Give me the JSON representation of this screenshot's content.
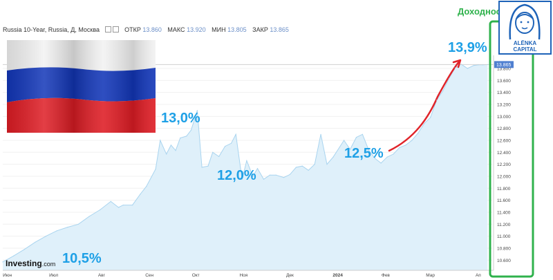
{
  "header": {
    "title": "Russia 10-Year, Russia, Д, Москва",
    "open_label": "ОТКР",
    "open_value": "13.860",
    "high_label": "МАКС",
    "high_value": "13.920",
    "low_label": "МИН",
    "low_value": "13.805",
    "close_label": "ЗАКР",
    "close_value": "13.865"
  },
  "brand": {
    "name": "Investing",
    "suffix": ".com"
  },
  "overlay": {
    "title_fragment": "Доходнос",
    "logo_line1": "ALЁNKA",
    "logo_line2": "CAPITAL",
    "annotations": [
      "10,5%",
      "13,0%",
      "12,0%",
      "12,5%",
      "13,9%"
    ]
  },
  "colors": {
    "area_fill": "#dff0fa",
    "area_line": "#a9d4ef",
    "annotation": "#1ea0e6",
    "arrow": "#e0242a",
    "highlight_box": "#2fb24c",
    "price_tag": "#4f7fd0",
    "logo": "#1e63b8"
  },
  "chart_data": {
    "type": "area",
    "x_ticks": [
      "Июн",
      "Июл",
      "Авг",
      "Сен",
      "Окт",
      "Ноя",
      "Дек",
      "2024",
      "Фев",
      "Мар",
      "Ап"
    ],
    "y_ticks": [
      "10.600",
      "10.800",
      "11.000",
      "11.200",
      "11.400",
      "11.600",
      "11.800",
      "12.000",
      "12.200",
      "12.400",
      "12.600",
      "12.800",
      "13.000",
      "13.200",
      "13.400",
      "13.600",
      "13.800"
    ],
    "ylim": [
      10.43,
      13.95
    ],
    "last_value": "13.865",
    "x": [
      "2023-05-29",
      "2023-06-05",
      "2023-06-12",
      "2023-06-19",
      "2023-06-26",
      "2023-07-03",
      "2023-07-10",
      "2023-07-17",
      "2023-07-24",
      "2023-07-31",
      "2023-08-07",
      "2023-08-12",
      "2023-08-15",
      "2023-08-21",
      "2023-08-26",
      "2023-08-30",
      "2023-09-05",
      "2023-09-08",
      "2023-09-12",
      "2023-09-15",
      "2023-09-18",
      "2023-09-21",
      "2023-09-25",
      "2023-09-28",
      "2023-10-02",
      "2023-10-05",
      "2023-10-09",
      "2023-10-12",
      "2023-10-16",
      "2023-10-20",
      "2023-10-24",
      "2023-10-27",
      "2023-10-31",
      "2023-11-03",
      "2023-11-07",
      "2023-11-10",
      "2023-11-14",
      "2023-11-18",
      "2023-11-22",
      "2023-11-27",
      "2023-12-01",
      "2023-12-05",
      "2023-12-09",
      "2023-12-13",
      "2023-12-17",
      "2023-12-21",
      "2023-12-25",
      "2023-12-29",
      "2024-01-05",
      "2024-01-09",
      "2024-01-13",
      "2024-01-17",
      "2024-01-21",
      "2024-01-25",
      "2024-01-29",
      "2024-02-02",
      "2024-02-06",
      "2024-02-10",
      "2024-02-14",
      "2024-02-18",
      "2024-02-22",
      "2024-02-26",
      "2024-03-01",
      "2024-03-05",
      "2024-03-09",
      "2024-03-13",
      "2024-03-17",
      "2024-03-21",
      "2024-03-25",
      "2024-03-29",
      "2024-04-01",
      "2024-04-04",
      "2024-04-07"
    ],
    "values": [
      10.57,
      10.67,
      10.78,
      10.9,
      11.0,
      11.09,
      11.15,
      11.2,
      11.33,
      11.44,
      11.58,
      11.48,
      11.52,
      11.52,
      11.7,
      11.83,
      12.12,
      12.6,
      12.37,
      12.52,
      12.43,
      12.64,
      12.67,
      12.77,
      13.1,
      12.15,
      12.17,
      12.4,
      12.33,
      12.5,
      12.55,
      12.7,
      11.95,
      12.26,
      12.0,
      12.13,
      11.95,
      12.02,
      12.02,
      11.98,
      12.03,
      12.15,
      12.17,
      12.1,
      12.2,
      12.7,
      12.2,
      12.32,
      12.6,
      12.45,
      12.65,
      12.7,
      12.44,
      12.3,
      12.22,
      12.32,
      12.37,
      12.48,
      12.52,
      12.6,
      12.72,
      12.88,
      12.98,
      13.27,
      13.42,
      13.63,
      13.81,
      13.87,
      13.8,
      13.85,
      13.86,
      13.86,
      13.865
    ]
  }
}
